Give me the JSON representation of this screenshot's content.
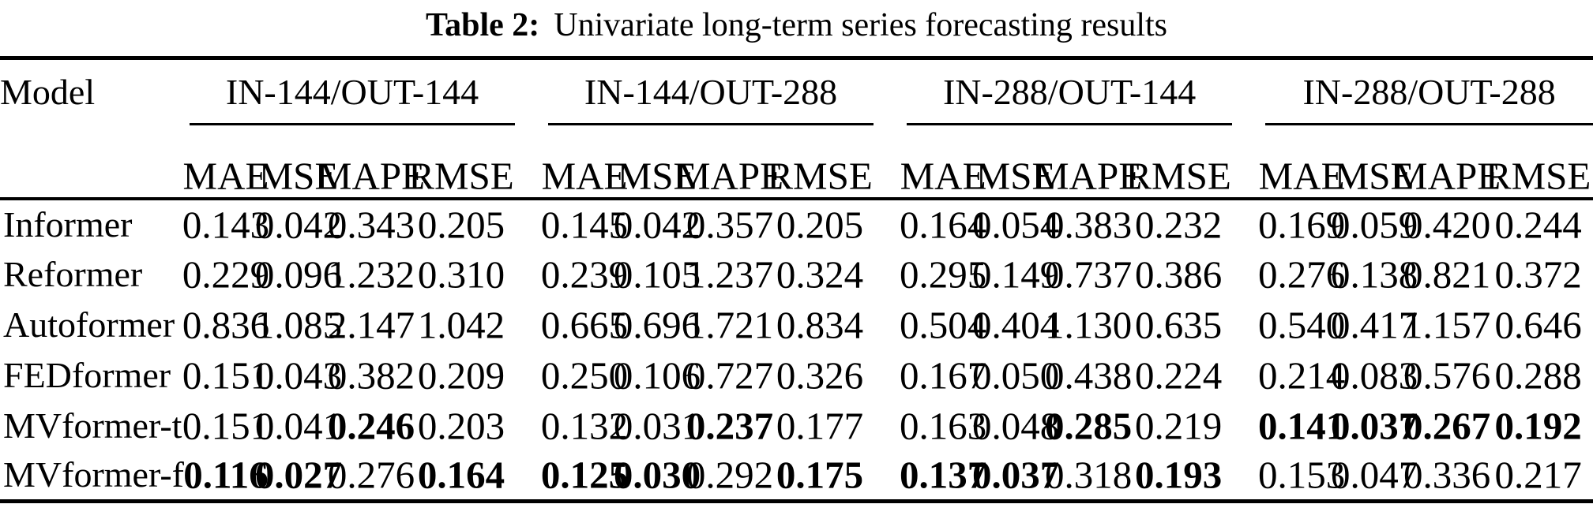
{
  "title": {
    "label": "Table 2:",
    "text": "Univariate long-term series forecasting results"
  },
  "table": {
    "model_header": "Model",
    "groups": [
      {
        "label": "IN-144/OUT-144"
      },
      {
        "label": "IN-144/OUT-288"
      },
      {
        "label": "IN-288/OUT-144"
      },
      {
        "label": "IN-288/OUT-288"
      }
    ],
    "metrics": [
      "MAE",
      "MSE",
      "MAPE",
      "RMSE"
    ],
    "rows": [
      {
        "model": "Informer",
        "values": [
          [
            "0.143",
            "0.042",
            "0.343",
            "0.205"
          ],
          [
            "0.145",
            "0.042",
            "0.357",
            "0.205"
          ],
          [
            "0.164",
            "0.054",
            "0.383",
            "0.232"
          ],
          [
            "0.169",
            "0.059",
            "0.420",
            "0.244"
          ]
        ]
      },
      {
        "model": "Reformer",
        "values": [
          [
            "0.229",
            "0.096",
            "1.232",
            "0.310"
          ],
          [
            "0.239",
            "0.105",
            "1.237",
            "0.324"
          ],
          [
            "0.295",
            "0.149",
            "0.737",
            "0.386"
          ],
          [
            "0.276",
            "0.138",
            "0.821",
            "0.372"
          ]
        ]
      },
      {
        "model": "Autoformer",
        "values": [
          [
            "0.836",
            "1.085",
            "2.147",
            "1.042"
          ],
          [
            "0.665",
            "0.696",
            "1.721",
            "0.834"
          ],
          [
            "0.504",
            "0.404",
            "1.130",
            "0.635"
          ],
          [
            "0.540",
            "0.417",
            "1.157",
            "0.646"
          ]
        ]
      },
      {
        "model": "FEDformer",
        "values": [
          [
            "0.151",
            "0.043",
            "0.382",
            "0.209"
          ],
          [
            "0.250",
            "0.106",
            "0.727",
            "0.326"
          ],
          [
            "0.167",
            "0.050",
            "0.438",
            "0.224"
          ],
          [
            "0.214",
            "0.083",
            "0.576",
            "0.288"
          ]
        ]
      },
      {
        "model": "MVformer-t",
        "values": [
          [
            "0.151",
            "0.041",
            "0.246",
            "0.203"
          ],
          [
            "0.132",
            "0.031",
            "0.237",
            "0.177"
          ],
          [
            "0.163",
            "0.048",
            "0.285",
            "0.219"
          ],
          [
            "0.141",
            "0.037",
            "0.267",
            "0.192"
          ]
        ],
        "bold": [
          [
            false,
            false,
            true,
            false
          ],
          [
            false,
            false,
            true,
            false
          ],
          [
            false,
            false,
            true,
            false
          ],
          [
            true,
            true,
            true,
            true
          ]
        ]
      },
      {
        "model": "MVformer-f",
        "values": [
          [
            "0.116",
            "0.027",
            "0.276",
            "0.164"
          ],
          [
            "0.125",
            "0.030",
            "0.292",
            "0.175"
          ],
          [
            "0.137",
            "0.037",
            "0.318",
            "0.193"
          ],
          [
            "0.153",
            "0.047",
            "0.336",
            "0.217"
          ]
        ],
        "bold": [
          [
            true,
            true,
            false,
            true
          ],
          [
            true,
            true,
            false,
            true
          ],
          [
            true,
            true,
            false,
            true
          ],
          [
            false,
            false,
            false,
            false
          ]
        ]
      }
    ]
  }
}
